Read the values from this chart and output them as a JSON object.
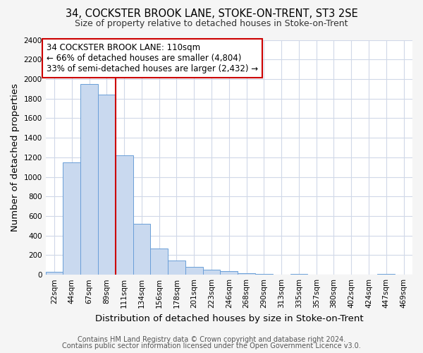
{
  "title": "34, COCKSTER BROOK LANE, STOKE-ON-TRENT, ST3 2SE",
  "subtitle": "Size of property relative to detached houses in Stoke-on-Trent",
  "xlabel": "Distribution of detached houses by size in Stoke-on-Trent",
  "ylabel": "Number of detached properties",
  "bin_labels": [
    "22sqm",
    "44sqm",
    "67sqm",
    "89sqm",
    "111sqm",
    "134sqm",
    "156sqm",
    "178sqm",
    "201sqm",
    "223sqm",
    "246sqm",
    "268sqm",
    "290sqm",
    "313sqm",
    "335sqm",
    "357sqm",
    "380sqm",
    "402sqm",
    "424sqm",
    "447sqm",
    "469sqm"
  ],
  "bar_values": [
    30,
    1150,
    1950,
    1840,
    1220,
    520,
    265,
    148,
    78,
    52,
    38,
    14,
    5,
    0,
    5,
    0,
    0,
    0,
    0,
    5,
    0
  ],
  "bar_color": "#c9d9ef",
  "bar_edge_color": "#6a9fd8",
  "vline_color": "#cc0000",
  "annotation_title": "34 COCKSTER BROOK LANE: 110sqm",
  "annotation_line1": "← 66% of detached houses are smaller (4,804)",
  "annotation_line2": "33% of semi-detached houses are larger (2,432) →",
  "annotation_box_color": "#cc0000",
  "ylim": [
    0,
    2400
  ],
  "yticks": [
    0,
    200,
    400,
    600,
    800,
    1000,
    1200,
    1400,
    1600,
    1800,
    2000,
    2200,
    2400
  ],
  "footer1": "Contains HM Land Registry data © Crown copyright and database right 2024.",
  "footer2": "Contains public sector information licensed under the Open Government Licence v3.0.",
  "fig_background_color": "#f5f5f5",
  "plot_bg_color": "#ffffff",
  "grid_color": "#d0d8e8",
  "title_fontsize": 10.5,
  "subtitle_fontsize": 9,
  "axis_label_fontsize": 9.5,
  "tick_fontsize": 7.5,
  "annotation_fontsize": 8.5,
  "footer_fontsize": 7
}
